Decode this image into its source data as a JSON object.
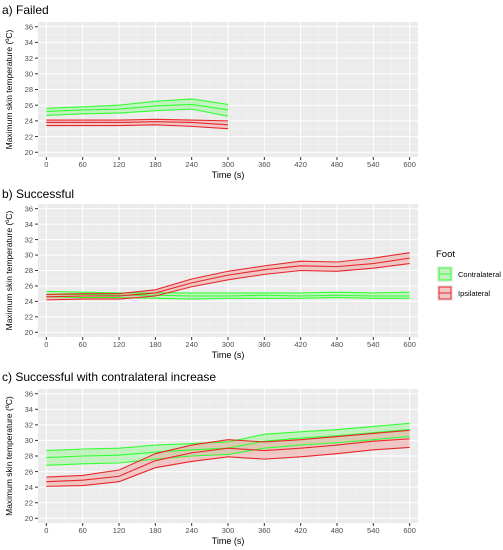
{
  "legend": {
    "title": "Foot",
    "entries": [
      {
        "label": "Contralateral",
        "color": "#33ff33"
      },
      {
        "label": "Ipsilateral",
        "color": "#e8262c"
      }
    ]
  },
  "colors": {
    "panel_bg": "#ebebeb",
    "grid_major": "#ffffff",
    "grid_minor": "#f4f4f4",
    "contralateral": "#33ff33",
    "ipsilateral": "#e8262c",
    "contra_band": "#9ef59a",
    "ipsi_band": "#f0a9a6"
  },
  "chart_data": [
    {
      "type": "line",
      "title": "a) Failed",
      "xlabel": "Time (s)",
      "ylabel": "Maximum skin temperature (ºC)",
      "xlim": [
        0,
        600
      ],
      "ylim": [
        20,
        36
      ],
      "x_ticks": [
        0,
        60,
        120,
        180,
        240,
        300,
        360,
        420,
        480,
        540,
        600
      ],
      "y_ticks": [
        20,
        22,
        24,
        26,
        28,
        30,
        32,
        34,
        36
      ],
      "grid": true,
      "series": [
        {
          "name": "Contralateral",
          "x": [
            0,
            60,
            120,
            180,
            240,
            300
          ],
          "mean": [
            25.2,
            25.4,
            25.5,
            25.9,
            26.1,
            25.4
          ],
          "upper": [
            25.6,
            25.8,
            26.0,
            26.5,
            26.8,
            26.1
          ],
          "lower": [
            24.7,
            24.9,
            25.0,
            25.3,
            25.5,
            24.6
          ]
        },
        {
          "name": "Ipsilateral",
          "x": [
            0,
            60,
            120,
            180,
            240,
            300
          ],
          "mean": [
            23.8,
            23.8,
            23.8,
            23.9,
            23.8,
            23.5
          ],
          "upper": [
            24.1,
            24.1,
            24.1,
            24.2,
            24.1,
            24.0
          ],
          "lower": [
            23.4,
            23.4,
            23.4,
            23.5,
            23.3,
            23.0
          ]
        }
      ]
    },
    {
      "type": "line",
      "title": "b) Successful",
      "xlabel": "Time (s)",
      "ylabel": "Maximum skin temperature (ºC)",
      "xlim": [
        0,
        600
      ],
      "ylim": [
        20,
        36
      ],
      "x_ticks": [
        0,
        60,
        120,
        180,
        240,
        300,
        360,
        420,
        480,
        540,
        600
      ],
      "y_ticks": [
        20,
        22,
        24,
        26,
        28,
        30,
        32,
        34,
        36
      ],
      "grid": true,
      "series": [
        {
          "name": "Contralateral",
          "x": [
            0,
            60,
            120,
            180,
            240,
            300,
            360,
            420,
            480,
            540,
            600
          ],
          "mean": [
            24.9,
            24.9,
            24.8,
            24.8,
            24.7,
            24.7,
            24.8,
            24.7,
            24.8,
            24.7,
            24.7
          ],
          "upper": [
            25.3,
            25.2,
            25.1,
            25.1,
            25.1,
            25.1,
            25.1,
            25.1,
            25.2,
            25.1,
            25.2
          ],
          "lower": [
            24.6,
            24.5,
            24.5,
            24.4,
            24.3,
            24.4,
            24.4,
            24.4,
            24.5,
            24.4,
            24.4
          ]
        },
        {
          "name": "Ipsilateral",
          "x": [
            0,
            60,
            120,
            180,
            240,
            300,
            360,
            420,
            480,
            540,
            600
          ],
          "mean": [
            24.6,
            24.7,
            24.7,
            25.1,
            26.4,
            27.4,
            28.1,
            28.6,
            28.5,
            28.9,
            29.6
          ],
          "upper": [
            24.9,
            25.0,
            25.0,
            25.5,
            26.9,
            27.9,
            28.6,
            29.2,
            29.1,
            29.6,
            30.3
          ],
          "lower": [
            24.2,
            24.3,
            24.3,
            24.7,
            25.9,
            26.8,
            27.5,
            28.0,
            27.9,
            28.3,
            28.9
          ]
        }
      ]
    },
    {
      "type": "line",
      "title": "c) Successful with contralateral increase",
      "xlabel": "Time (s)",
      "ylabel": "Maximum skin temperature (ºC)",
      "xlim": [
        0,
        600
      ],
      "ylim": [
        20,
        36
      ],
      "x_ticks": [
        0,
        60,
        120,
        180,
        240,
        300,
        360,
        420,
        480,
        540,
        600
      ],
      "y_ticks": [
        20,
        22,
        24,
        26,
        28,
        30,
        32,
        34,
        36
      ],
      "grid": true,
      "series": [
        {
          "name": "Contralateral",
          "x": [
            0,
            60,
            120,
            180,
            240,
            300,
            360,
            420,
            480,
            540,
            600
          ],
          "mean": [
            27.8,
            28.0,
            28.1,
            28.5,
            28.8,
            29.0,
            29.9,
            30.3,
            30.6,
            31.0,
            31.4
          ],
          "upper": [
            28.7,
            28.9,
            29.0,
            29.4,
            29.6,
            29.8,
            30.8,
            31.1,
            31.4,
            31.8,
            32.2
          ],
          "lower": [
            26.8,
            27.0,
            27.1,
            27.6,
            28.0,
            28.2,
            29.0,
            29.4,
            29.7,
            30.1,
            30.5
          ]
        },
        {
          "name": "Ipsilateral",
          "x": [
            0,
            60,
            120,
            180,
            240,
            300,
            360,
            420,
            480,
            540,
            600
          ],
          "mean": [
            24.7,
            24.9,
            25.4,
            27.4,
            28.4,
            29.0,
            28.7,
            29.0,
            29.4,
            29.9,
            30.2
          ],
          "upper": [
            25.3,
            25.5,
            26.2,
            28.3,
            29.4,
            30.1,
            29.8,
            30.1,
            30.5,
            30.9,
            31.3
          ],
          "lower": [
            24.1,
            24.2,
            24.7,
            26.5,
            27.3,
            27.9,
            27.6,
            27.9,
            28.3,
            28.8,
            29.1
          ]
        }
      ]
    }
  ]
}
